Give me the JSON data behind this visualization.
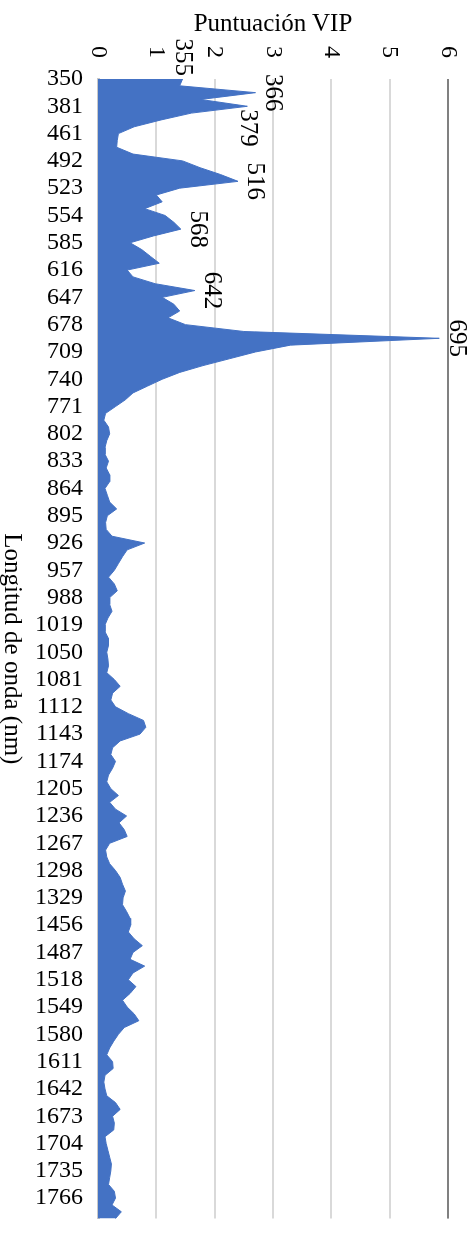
{
  "chart_data": {
    "type": "area",
    "orientation": "horizontal",
    "xlabel": "Puntuación VIP",
    "ylabel": "Longitud de onda (nm)",
    "categories": [
      "350",
      null,
      null,
      null,
      "381",
      null,
      null,
      null,
      "461",
      null,
      null,
      null,
      "492",
      null,
      null,
      null,
      "523",
      null,
      null,
      null,
      "554",
      null,
      null,
      null,
      "585",
      null,
      null,
      null,
      "616",
      null,
      null,
      null,
      "647",
      null,
      null,
      null,
      "678",
      null,
      null,
      null,
      "709",
      null,
      null,
      null,
      "740",
      null,
      null,
      null,
      "771",
      null,
      null,
      null,
      "802",
      null,
      null,
      null,
      "833",
      null,
      null,
      null,
      "864",
      null,
      null,
      null,
      "895",
      null,
      null,
      null,
      "926",
      null,
      null,
      null,
      "957",
      null,
      null,
      null,
      "988",
      null,
      null,
      null,
      "1019",
      null,
      null,
      null,
      "1050",
      null,
      null,
      null,
      "1081",
      null,
      null,
      null,
      "1112",
      null,
      null,
      null,
      "1143",
      null,
      null,
      null,
      "1174",
      null,
      null,
      null,
      "1205",
      null,
      null,
      null,
      "1236",
      null,
      null,
      null,
      "1267",
      null,
      null,
      null,
      "1298",
      null,
      null,
      null,
      "1329",
      null,
      null,
      null,
      "1456",
      null,
      null,
      null,
      "1487",
      null,
      null,
      null,
      "1518",
      null,
      null,
      null,
      "1549",
      null,
      null,
      null,
      "1580",
      null,
      null,
      null,
      "1611",
      null,
      null,
      null,
      "1642",
      null,
      null,
      null,
      "1673",
      null,
      null,
      null,
      "1704",
      null,
      null,
      null,
      "1735",
      null,
      null,
      null,
      "1766",
      null,
      null,
      null
    ],
    "values": [
      1.45,
      1.4,
      2.7,
      1.76,
      2.56,
      1.6,
      1.08,
      0.62,
      0.35,
      0.33,
      0.32,
      0.6,
      1.45,
      1.75,
      2.1,
      2.4,
      1.4,
      1,
      1.1,
      0.8,
      1.15,
      1.3,
      1.42,
      0.95,
      0.55,
      0.75,
      0.9,
      1.05,
      0.5,
      0.6,
      0.98,
      1.66,
      1.1,
      1.3,
      1.4,
      1.2,
      1.5,
      2.5,
      5.85,
      3.3,
      2.7,
      2.25,
      1.8,
      1.4,
      1.1,
      0.85,
      0.6,
      0.47,
      0.3,
      0.13,
      0.1,
      0.18,
      0.2,
      0.15,
      0.12,
      0.12,
      0.18,
      0.14,
      0.2,
      0.2,
      0.12,
      0.16,
      0.2,
      0.32,
      0.16,
      0.13,
      0.14,
      0.24,
      0.8,
      0.5,
      0.42,
      0.35,
      0.28,
      0.18,
      0.28,
      0.33,
      0.2,
      0.2,
      0.24,
      0.17,
      0.12,
      0.12,
      0.18,
      0.18,
      0.15,
      0.17,
      0.18,
      0.15,
      0.28,
      0.38,
      0.25,
      0.22,
      0.3,
      0.52,
      0.78,
      0.82,
      0.72,
      0.38,
      0.25,
      0.22,
      0.3,
      0.25,
      0.18,
      0.15,
      0.22,
      0.35,
      0.2,
      0.3,
      0.49,
      0.36,
      0.45,
      0.5,
      0.2,
      0.13,
      0.15,
      0.2,
      0.3,
      0.38,
      0.42,
      0.47,
      0.43,
      0.42,
      0.49,
      0.55,
      0.56,
      0.52,
      0.62,
      0.76,
      0.6,
      0.55,
      0.8,
      0.6,
      0.52,
      0.65,
      0.55,
      0.42,
      0.5,
      0.62,
      0.7,
      0.45,
      0.35,
      0.27,
      0.2,
      0.15,
      0.25,
      0.26,
      0.12,
      0.1,
      0.12,
      0.15,
      0.3,
      0.38,
      0.25,
      0.28,
      0.27,
      0.12,
      0.14,
      0.17,
      0.2,
      0.23,
      0.22,
      0.2,
      0.18,
      0.28,
      0.3,
      0.24,
      0.4,
      0.3
    ],
    "color": "#4472c4",
    "xlim": [
      0,
      6
    ],
    "xticks": [
      0,
      1,
      2,
      3,
      4,
      5,
      6
    ],
    "grid": "x",
    "ref_lines": [
      {
        "axis": "x",
        "value": 6,
        "color": "#808080"
      }
    ],
    "annotations": [
      "355",
      "366",
      "379",
      "516",
      "568",
      "642",
      "695"
    ]
  }
}
